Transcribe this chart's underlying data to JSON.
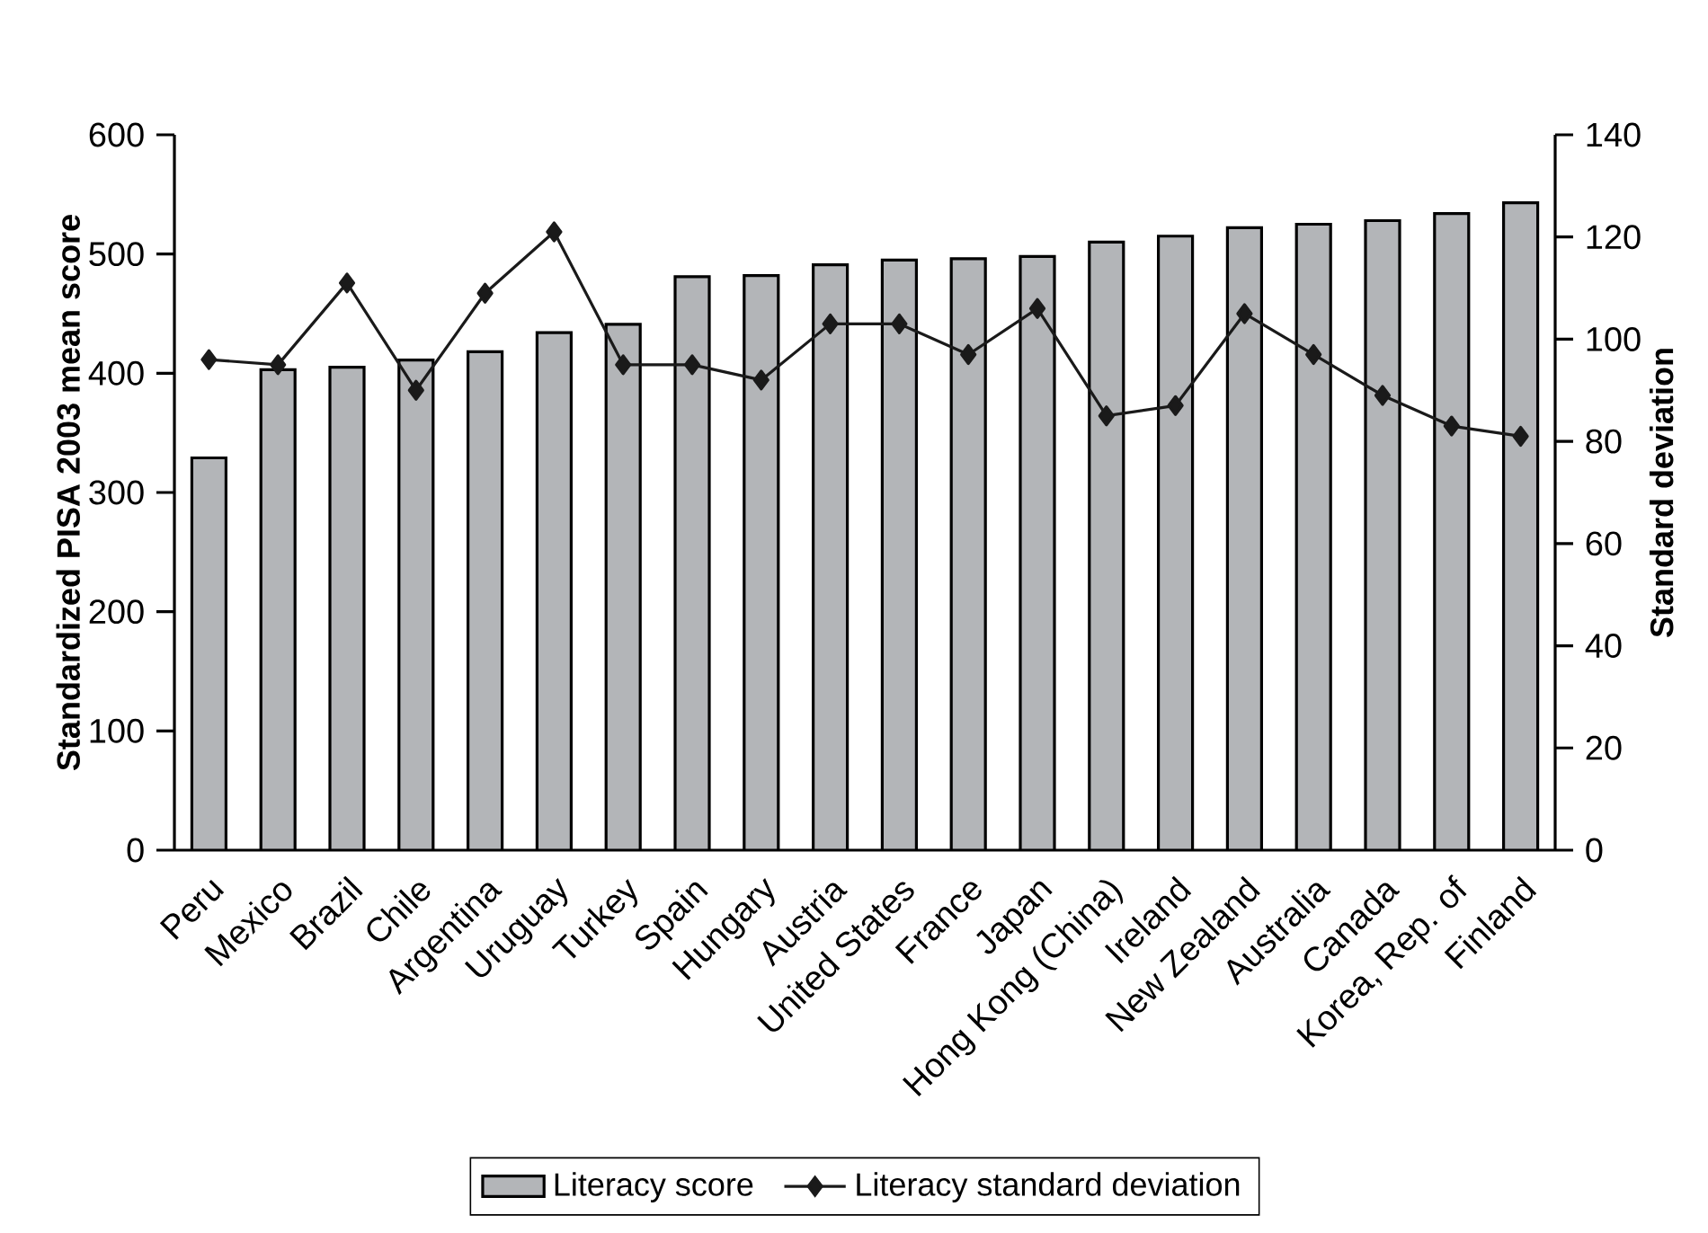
{
  "chart_data": {
    "type": "bar",
    "ylabel": "Standardized PISA 2003 mean score",
    "y2label": "Standard deviation",
    "categories": [
      "Peru",
      "Mexico",
      "Brazil",
      "Chile",
      "Argentina",
      "Uruguay",
      "Turkey",
      "Spain",
      "Hungary",
      "Austria",
      "United States",
      "France",
      "Japan",
      "Hong Kong (China)",
      "Ireland",
      "New Zealand",
      "Australia",
      "Canada",
      "Korea, Rep. of",
      "Finland"
    ],
    "series": [
      {
        "name": "Literacy score",
        "color": "#b3b5b8",
        "values": [
          329,
          403,
          405,
          411,
          418,
          434,
          441,
          481,
          482,
          491,
          495,
          496,
          498,
          510,
          515,
          522,
          525,
          528,
          534,
          543
        ]
      },
      {
        "name": "Literacy standard deviation",
        "type": "line",
        "axis": "y2",
        "color": "#1a1a1a",
        "marker": "diamond",
        "values": [
          96,
          95,
          111,
          90,
          109,
          121,
          95,
          95,
          92,
          103,
          103,
          97,
          106,
          85,
          87,
          105,
          97,
          89,
          83,
          81
        ]
      }
    ],
    "ylim": [
      0,
      600
    ],
    "yticks": [
      0,
      100,
      200,
      300,
      400,
      500,
      600
    ],
    "y2lim": [
      0,
      140
    ],
    "y2ticks": [
      0,
      20,
      40,
      60,
      80,
      100,
      120,
      140
    ],
    "legend": "bottom",
    "grid": false
  }
}
